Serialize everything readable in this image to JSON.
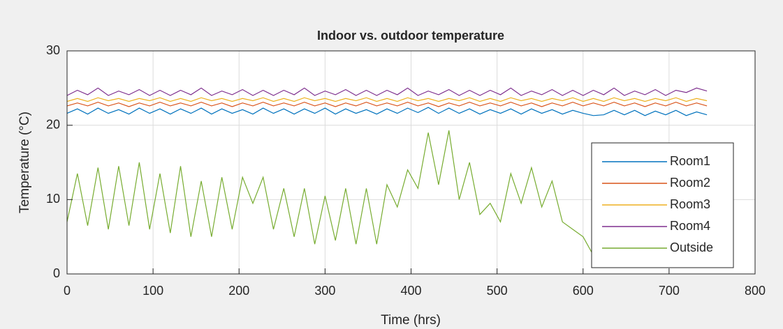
{
  "chart_data": {
    "type": "line",
    "title": "Indoor vs. outdoor temperature",
    "x_label": "Time (hrs)",
    "y_label": "Temperature (°C)",
    "xlim": [
      0,
      800
    ],
    "xticks": [
      0,
      100,
      200,
      300,
      400,
      500,
      600,
      700,
      800
    ],
    "ylim": [
      0,
      30
    ],
    "yticks": [
      0,
      10,
      20,
      30
    ],
    "grid": true,
    "legend": "southeast",
    "x": [
      0,
      12,
      24,
      36,
      48,
      60,
      72,
      84,
      96,
      108,
      120,
      132,
      144,
      156,
      168,
      180,
      192,
      204,
      216,
      228,
      240,
      252,
      264,
      276,
      288,
      300,
      312,
      324,
      336,
      348,
      360,
      372,
      384,
      396,
      408,
      420,
      432,
      444,
      456,
      468,
      480,
      492,
      504,
      516,
      528,
      540,
      552,
      564,
      576,
      588,
      600,
      612,
      624,
      636,
      648,
      660,
      672,
      684,
      696,
      708,
      720,
      732,
      744
    ],
    "series": [
      {
        "name": "Room1",
        "color": "#0072bd",
        "values": [
          21.6,
          22.2,
          21.5,
          22.3,
          21.6,
          22.1,
          21.5,
          22.3,
          21.6,
          22.2,
          21.5,
          22.2,
          21.6,
          22.3,
          21.5,
          22.2,
          21.6,
          22.1,
          21.5,
          22.3,
          21.6,
          22.2,
          21.5,
          22.2,
          21.6,
          22.3,
          21.5,
          22.2,
          21.6,
          22.1,
          21.5,
          22.2,
          21.6,
          22.3,
          21.7,
          22.4,
          21.6,
          22.3,
          21.6,
          22.2,
          21.5,
          22.1,
          21.6,
          22.2,
          21.5,
          22.2,
          21.6,
          22.1,
          21.5,
          22.0,
          21.6,
          21.3,
          21.4,
          22.0,
          21.4,
          22.0,
          21.3,
          21.9,
          21.4,
          22.0,
          21.3,
          21.8,
          21.4
        ]
      },
      {
        "name": "Room2",
        "color": "#d95319",
        "values": [
          22.6,
          23.0,
          22.6,
          23.1,
          22.6,
          23.0,
          22.5,
          23.0,
          22.6,
          23.1,
          22.6,
          23.0,
          22.6,
          23.1,
          22.6,
          23.0,
          22.5,
          23.0,
          22.6,
          23.1,
          22.6,
          23.0,
          22.6,
          23.1,
          22.6,
          23.0,
          22.5,
          23.0,
          22.6,
          23.1,
          22.6,
          23.0,
          22.6,
          23.1,
          22.6,
          23.0,
          22.5,
          23.0,
          22.6,
          23.1,
          22.6,
          23.0,
          22.6,
          23.1,
          22.6,
          23.0,
          22.5,
          23.0,
          22.6,
          23.1,
          22.6,
          23.0,
          22.6,
          23.1,
          22.6,
          23.0,
          22.5,
          23.0,
          22.6,
          23.1,
          22.6,
          23.0,
          22.6
        ]
      },
      {
        "name": "Room3",
        "color": "#edb120",
        "values": [
          23.2,
          23.6,
          23.2,
          23.7,
          23.3,
          23.6,
          23.2,
          23.6,
          23.3,
          23.7,
          23.2,
          23.6,
          23.2,
          23.7,
          23.3,
          23.6,
          23.2,
          23.6,
          23.3,
          23.7,
          23.2,
          23.6,
          23.2,
          23.7,
          23.3,
          23.6,
          23.2,
          23.6,
          23.3,
          23.7,
          23.2,
          23.6,
          23.2,
          23.7,
          23.3,
          23.6,
          23.2,
          23.6,
          23.3,
          23.7,
          23.2,
          23.6,
          23.2,
          23.7,
          23.3,
          23.6,
          23.2,
          23.6,
          23.3,
          23.7,
          23.2,
          23.6,
          23.2,
          23.7,
          23.3,
          23.6,
          23.2,
          23.6,
          23.3,
          23.7,
          23.2,
          23.6,
          23.3
        ]
      },
      {
        "name": "Room4",
        "color": "#7e2f8e",
        "values": [
          24.0,
          24.7,
          24.1,
          25.0,
          24.0,
          24.6,
          24.1,
          24.8,
          24.0,
          24.7,
          24.0,
          24.7,
          24.1,
          25.0,
          24.0,
          24.6,
          24.1,
          24.8,
          24.0,
          24.7,
          24.0,
          24.7,
          24.1,
          25.0,
          24.0,
          24.6,
          24.1,
          24.8,
          24.0,
          24.7,
          24.0,
          24.7,
          24.1,
          25.0,
          24.0,
          24.6,
          24.1,
          24.8,
          24.0,
          24.7,
          24.0,
          24.7,
          24.1,
          25.0,
          24.0,
          24.6,
          24.1,
          24.8,
          24.0,
          24.7,
          24.0,
          24.7,
          24.1,
          25.0,
          24.0,
          24.6,
          24.1,
          24.8,
          24.0,
          24.7,
          24.4,
          25.0,
          24.6
        ]
      },
      {
        "name": "Outside",
        "color": "#77ac30",
        "values": [
          7,
          13.5,
          6.5,
          14.3,
          6,
          14.5,
          6.5,
          15,
          6,
          13.5,
          5.5,
          14.5,
          5,
          12.5,
          5,
          13,
          6,
          13,
          9.5,
          13,
          6,
          11.5,
          5,
          11.5,
          4,
          10.5,
          4.5,
          11.5,
          4,
          11.5,
          4,
          12,
          9,
          14,
          11.5,
          19,
          12,
          19.3,
          10,
          15,
          8,
          9.5,
          7,
          13.5,
          9.5,
          14.3,
          9,
          12.5,
          7,
          6,
          5,
          2.5,
          3,
          4,
          4.5,
          5,
          5,
          5.5,
          5,
          6,
          5.5,
          6,
          6
        ]
      }
    ]
  }
}
